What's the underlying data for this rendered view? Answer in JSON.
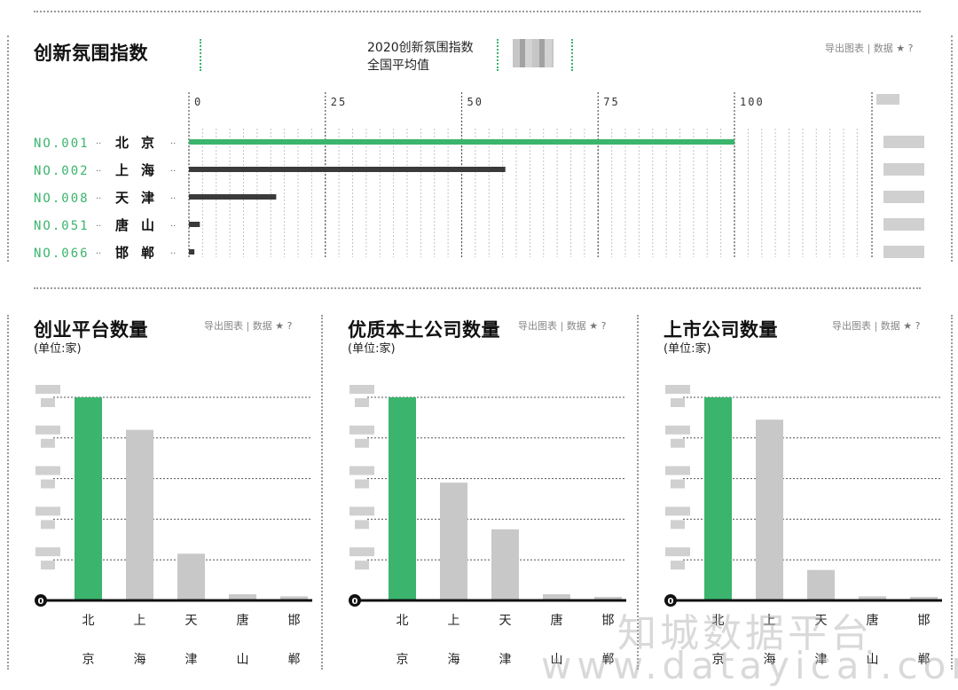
{
  "top_panel": {
    "title": "创新氛围指数",
    "legend": {
      "line1": "2020创新氛围指数",
      "line2": "全国平均值"
    },
    "tools": {
      "export": "导出图表",
      "sep": "|",
      "data": "数据",
      "star": "★",
      "help": "?"
    }
  },
  "panels": [
    {
      "title": "创业平台数量",
      "unit": "(单位:家)",
      "tools": {
        "export": "导出图表",
        "sep": "|",
        "data": "数据",
        "star": "★",
        "help": "?"
      }
    },
    {
      "title": "优质本土公司数量",
      "unit": "(单位:家)",
      "tools": {
        "export": "导出图表",
        "sep": "|",
        "data": "数据",
        "star": "★",
        "help": "?"
      }
    },
    {
      "title": "上市公司数量",
      "unit": "(单位:家)",
      "tools": {
        "export": "导出图表",
        "sep": "|",
        "data": "数据",
        "star": "★",
        "help": "?"
      }
    }
  ],
  "watermark": {
    "cn": "知城数据平台",
    "en": "www.datayicai.com"
  },
  "colors": {
    "accent": "#3bb46d",
    "dark_bar": "#3a3a3a",
    "grey_bar": "#c8c8c8"
  },
  "chart_data": [
    {
      "type": "bar",
      "orientation": "horizontal",
      "title": "创新氛围指数",
      "ranks": [
        "NO.001",
        "NO.002",
        "NO.008",
        "NO.051",
        "NO.066"
      ],
      "categories": [
        "北京",
        "上海",
        "天津",
        "唐山",
        "邯郸"
      ],
      "values": [
        100,
        58,
        16,
        2,
        1
      ],
      "xticks": [
        "0",
        "25",
        "50",
        "75",
        "100"
      ],
      "xlim": [
        0,
        100
      ],
      "grid": true
    },
    {
      "type": "bar",
      "title": "创业平台数量",
      "categories": [
        "北京",
        "上海",
        "天津",
        "唐山",
        "邯郸"
      ],
      "values": [
        100,
        84,
        23,
        3,
        2
      ],
      "ylim": [
        0,
        100
      ],
      "y_zero_label": "0",
      "grid": true
    },
    {
      "type": "bar",
      "title": "优质本土公司数量",
      "categories": [
        "北京",
        "上海",
        "天津",
        "唐山",
        "邯郸"
      ],
      "values": [
        100,
        58,
        35,
        3,
        1
      ],
      "ylim": [
        0,
        100
      ],
      "y_zero_label": "0",
      "grid": true
    },
    {
      "type": "bar",
      "title": "上市公司数量",
      "categories": [
        "北京",
        "上海",
        "天津",
        "唐山",
        "邯郸"
      ],
      "values": [
        100,
        89,
        15,
        2,
        0
      ],
      "ylim": [
        0,
        100
      ],
      "y_zero_label": "0",
      "grid": true
    }
  ]
}
